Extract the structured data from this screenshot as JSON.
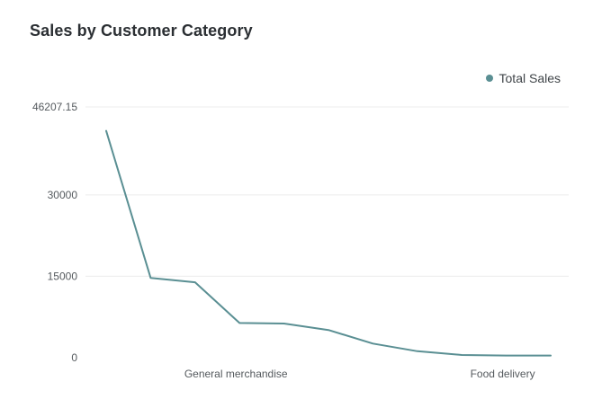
{
  "chart_data": {
    "type": "line",
    "title": "Sales by Customer Category",
    "xlabel": "",
    "ylabel": "",
    "ylim": [
      0,
      46207.15
    ],
    "yticks": [
      "0",
      "15000",
      "30000",
      "46207.15"
    ],
    "ytick_values": [
      0,
      15000,
      30000,
      46207.15
    ],
    "categories": [
      "",
      "",
      "",
      "General merchandise",
      "",
      "",
      "",
      "",
      "",
      "Food delivery",
      ""
    ],
    "series": [
      {
        "name": "Total Sales",
        "color": "#5a8f93",
        "values": [
          41800,
          14700,
          13900,
          6400,
          6300,
          5100,
          2600,
          1200,
          500,
          400,
          400
        ]
      }
    ],
    "grid": true,
    "legend_position": "top-right"
  }
}
